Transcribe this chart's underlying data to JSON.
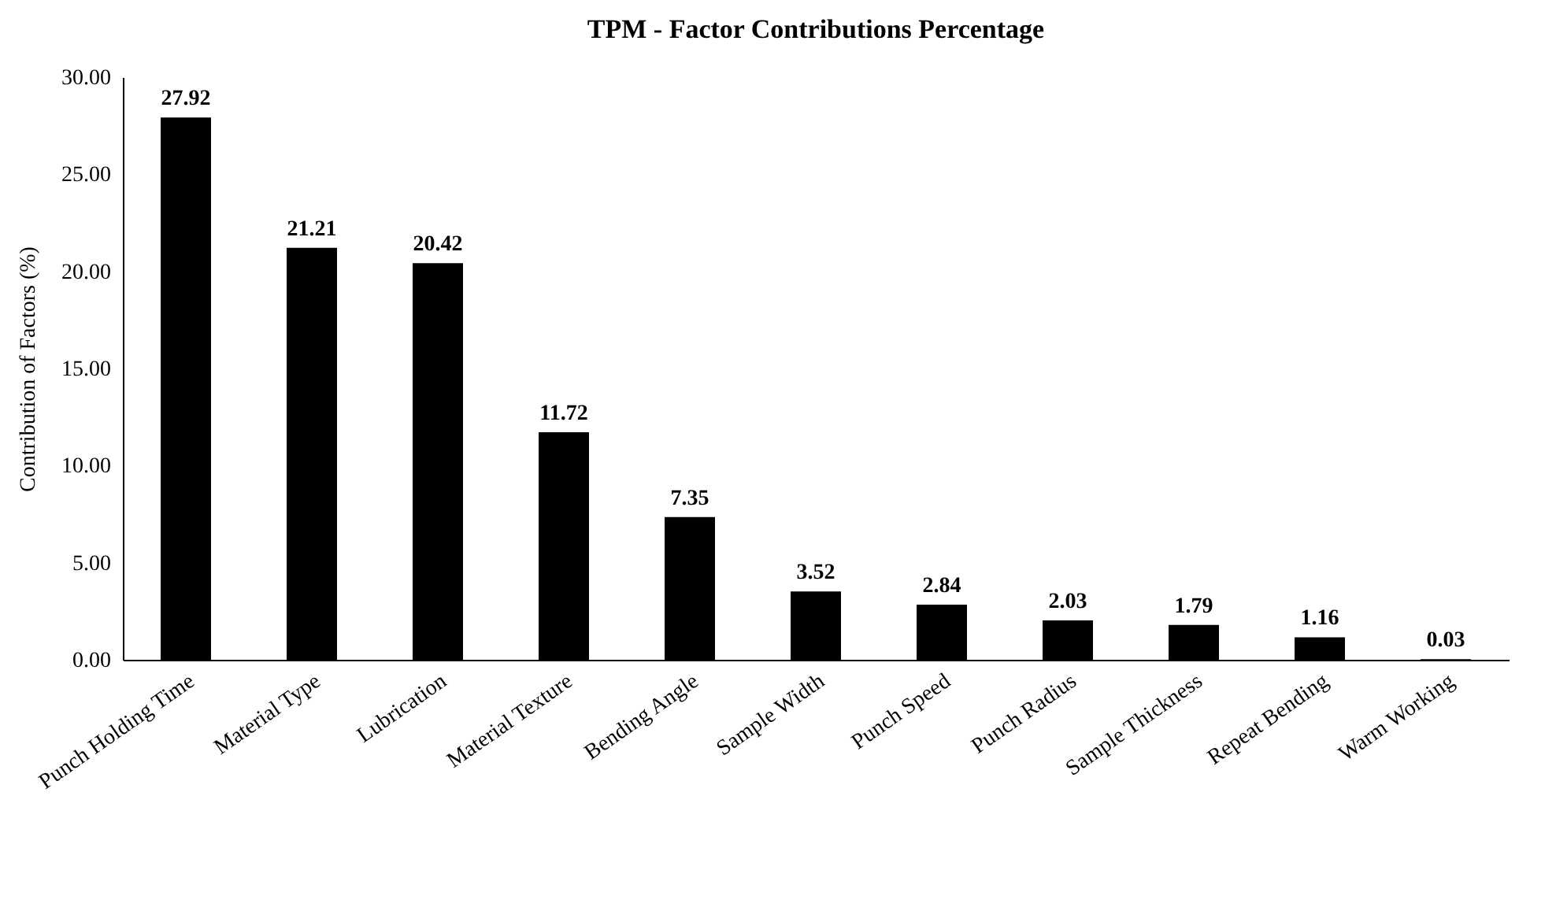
{
  "chart_data": {
    "type": "bar",
    "title": "TPM - Factor Contributions Percentage",
    "ylabel": "Contribution of Factors (%)",
    "categories": [
      "Punch Holding Time",
      "Material Type",
      "Lubrication",
      "Material Texture",
      "Bending Angle",
      "Sample Width",
      "Punch Speed",
      "Punch Radius",
      "Sample Thickness",
      "Repeat Bending",
      "Warm Working"
    ],
    "values": [
      27.92,
      21.21,
      20.42,
      11.72,
      7.35,
      3.52,
      2.84,
      2.03,
      1.79,
      1.16,
      0.03
    ],
    "color": "#000000",
    "value_labels": [
      "27.92",
      "21.21",
      "20.42",
      "11.72",
      "7.35",
      "3.52",
      "2.84",
      "2.03",
      "1.79",
      "1.16",
      "0.03"
    ],
    "ylim": [
      0,
      30
    ],
    "yticks": [
      {
        "value": 0,
        "label": "0.00"
      },
      {
        "value": 5,
        "label": "5.00"
      },
      {
        "value": 10,
        "label": "10.00"
      },
      {
        "value": 15,
        "label": "15.00"
      },
      {
        "value": 20,
        "label": "20.00"
      },
      {
        "value": 25,
        "label": "25.00"
      },
      {
        "value": 30,
        "label": "30.00"
      }
    ],
    "grid": false
  }
}
